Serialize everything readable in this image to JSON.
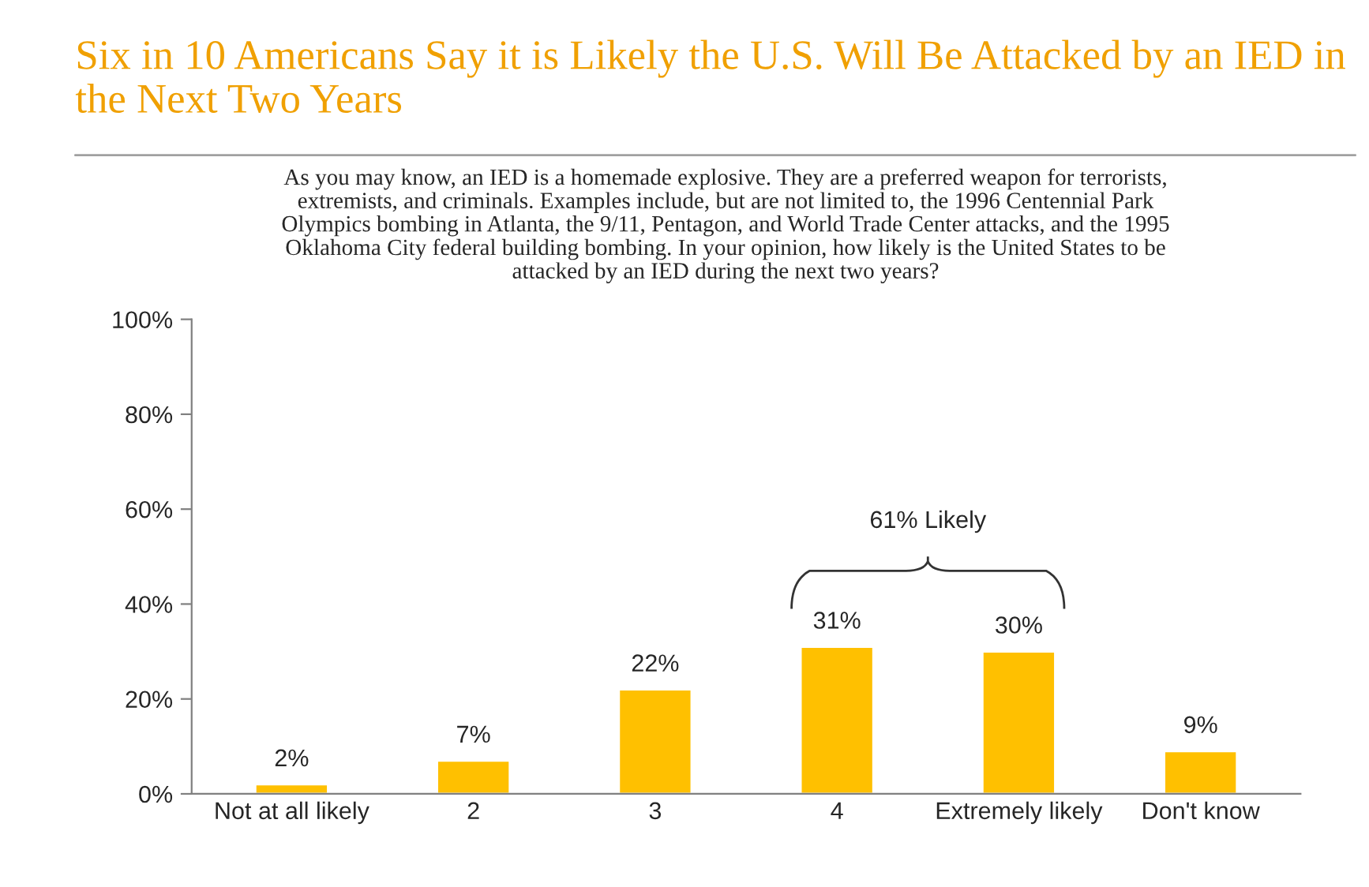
{
  "chart_data": {
    "type": "bar",
    "title": "Six in 10 Americans Say it is Likely the U.S. Will Be Attacked by an IED in the Next Two Years",
    "subtitle": "As you may know, an IED is a homemade explosive. They are a preferred weapon for terrorists,\nextremists, and criminals. Examples include, but are not limited to, the 1996 Centennial Park\nOlympics bombing in Atlanta, the 9/11, Pentagon, and World Trade Center attacks, and the 1995\nOklahoma City federal building bombing. In your opinion, how likely is the United States to be\nattacked by an IED during the next two years?",
    "categories": [
      "Not at all likely",
      "2",
      "3",
      "4",
      "Extremely likely",
      "Don't know"
    ],
    "values": [
      2,
      7,
      22,
      31,
      30,
      9
    ],
    "value_labels": [
      "2%",
      "7%",
      "22%",
      "31%",
      "30%",
      "9%"
    ],
    "color": "#ffc000",
    "ylim": [
      0,
      100
    ],
    "yticks": [
      {
        "value": 0,
        "label": "0%"
      },
      {
        "value": 20,
        "label": "20%"
      },
      {
        "value": 40,
        "label": "40%"
      },
      {
        "value": 60,
        "label": "60%"
      },
      {
        "value": 80,
        "label": "80%"
      },
      {
        "value": 100,
        "label": "100%"
      }
    ],
    "grid": false,
    "annotations": [
      "61% Likely"
    ]
  }
}
